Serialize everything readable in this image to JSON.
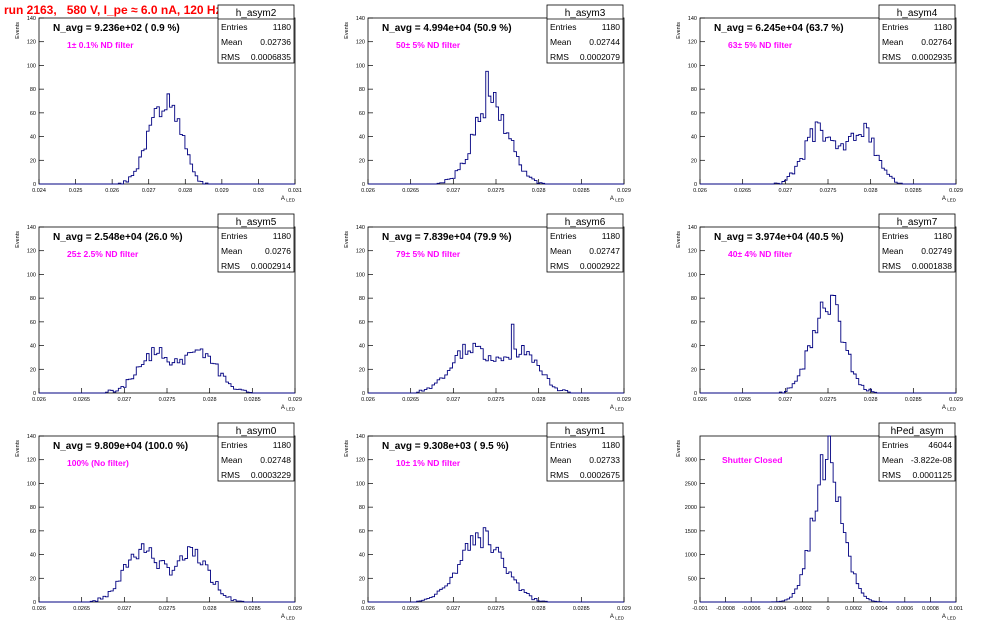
{
  "page": {
    "title": "run 2163,   580 V, I_pe ≈ 6.0 nA, 120 Hz"
  },
  "colors": {
    "title": "#ff0000",
    "annotation": "#ff00ff",
    "histogram": "#000080",
    "axis": "#000000"
  },
  "chart_data": [
    {
      "type": "histogram",
      "name": "h_asym2",
      "header": "N_avg = 9.236e+02 ( 0.9 %)",
      "annotation": "1± 0.1% ND filter",
      "stats": [
        [
          "Entries",
          "1180"
        ],
        [
          "Mean",
          "0.02736"
        ],
        [
          "RMS",
          "0.0006835"
        ]
      ],
      "xlabel": "A_LED",
      "ylabel": "Events",
      "xlim": [
        0.024,
        0.031
      ],
      "ylim": [
        0,
        140
      ],
      "xticks": [
        "0.024",
        "0.025",
        "0.026",
        "0.027",
        "0.028",
        "0.029",
        "0.03",
        "0.031"
      ],
      "yticks": [
        "0",
        "20",
        "40",
        "60",
        "80",
        "100",
        "120",
        "140"
      ],
      "peaks": [
        [
          0.02725,
          0.00035,
          52
        ],
        [
          0.02775,
          0.0003,
          35
        ]
      ],
      "noise_seed": 1
    },
    {
      "type": "histogram",
      "name": "h_asym3",
      "header": "N_avg = 4.994e+04 (50.9 %)",
      "annotation": "50± 5% ND filter",
      "stats": [
        [
          "Entries",
          "1180"
        ],
        [
          "Mean",
          "0.02744"
        ],
        [
          "RMS",
          "0.0002079"
        ]
      ],
      "xlabel": "A_LED",
      "ylabel": "Events",
      "xlim": [
        0.026,
        0.029
      ],
      "ylim": [
        0,
        140
      ],
      "xticks": [
        "0.026",
        "0.0265",
        "0.027",
        "0.0275",
        "0.028",
        "0.0285",
        "0.029"
      ],
      "yticks": [
        "0",
        "20",
        "40",
        "60",
        "80",
        "100",
        "120",
        "140"
      ],
      "peaks": [
        [
          0.02744,
          0.0002,
          72
        ]
      ],
      "spikes": [
        [
          0.0274,
          95
        ]
      ],
      "noise_seed": 2
    },
    {
      "type": "histogram",
      "name": "h_asym4",
      "header": "N_avg = 6.245e+04 (63.7 %)",
      "annotation": "63± 5% ND filter",
      "stats": [
        [
          "Entries",
          "1180"
        ],
        [
          "Mean",
          "0.02764"
        ],
        [
          "RMS",
          "0.0002935"
        ]
      ],
      "xlabel": "A_LED",
      "ylabel": "Events",
      "xlim": [
        0.026,
        0.029
      ],
      "ylim": [
        0,
        140
      ],
      "xticks": [
        "0.026",
        "0.0265",
        "0.027",
        "0.0275",
        "0.028",
        "0.0285",
        "0.029"
      ],
      "yticks": [
        "0",
        "20",
        "40",
        "60",
        "80",
        "100",
        "120",
        "140"
      ],
      "peaks": [
        [
          0.0274,
          0.00018,
          45
        ],
        [
          0.0279,
          0.00016,
          45
        ]
      ],
      "noise_seed": 3
    },
    {
      "type": "histogram",
      "name": "h_asym5",
      "header": "N_avg = 2.548e+04 (26.0 %)",
      "annotation": "25± 2.5% ND filter",
      "stats": [
        [
          "Entries",
          "1180"
        ],
        [
          "Mean",
          "0.0276"
        ],
        [
          "RMS",
          "0.0002914"
        ]
      ],
      "xlabel": "A_LED",
      "ylabel": "Events",
      "xlim": [
        0.026,
        0.029
      ],
      "ylim": [
        0,
        140
      ],
      "xticks": [
        "0.026",
        "0.0265",
        "0.027",
        "0.0275",
        "0.028",
        "0.0285",
        "0.029"
      ],
      "yticks": [
        "0",
        "20",
        "40",
        "60",
        "80",
        "100",
        "120",
        "140"
      ],
      "peaks": [
        [
          0.02735,
          0.0002,
          33
        ],
        [
          0.0279,
          0.0002,
          33
        ]
      ],
      "noise_seed": 4
    },
    {
      "type": "histogram",
      "name": "h_asym6",
      "header": "N_avg = 7.839e+04 (79.9 %)",
      "annotation": "79± 5% ND filter",
      "stats": [
        [
          "Entries",
          "1180"
        ],
        [
          "Mean",
          "0.02747"
        ],
        [
          "RMS",
          "0.0002922"
        ]
      ],
      "xlabel": "A_LED",
      "ylabel": "Events",
      "xlim": [
        0.026,
        0.029
      ],
      "ylim": [
        0,
        140
      ],
      "xticks": [
        "0.026",
        "0.0265",
        "0.027",
        "0.0275",
        "0.028",
        "0.0285",
        "0.029"
      ],
      "yticks": [
        "0",
        "20",
        "40",
        "60",
        "80",
        "100",
        "120",
        "140"
      ],
      "peaks": [
        [
          0.0272,
          0.00022,
          38
        ],
        [
          0.0278,
          0.0002,
          36
        ]
      ],
      "spikes": [
        [
          0.0277,
          58
        ]
      ],
      "noise_seed": 5
    },
    {
      "type": "histogram",
      "name": "h_asym7",
      "header": "N_avg = 3.974e+04 (40.5 %)",
      "annotation": "40± 4% ND filter",
      "stats": [
        [
          "Entries",
          "1180"
        ],
        [
          "Mean",
          "0.02749"
        ],
        [
          "RMS",
          "0.0001838"
        ]
      ],
      "xlabel": "A_LED",
      "ylabel": "Events",
      "xlim": [
        0.026,
        0.029
      ],
      "ylim": [
        0,
        140
      ],
      "xticks": [
        "0.026",
        "0.0265",
        "0.027",
        "0.0275",
        "0.028",
        "0.0285",
        "0.029"
      ],
      "yticks": [
        "0",
        "20",
        "40",
        "60",
        "80",
        "100",
        "120",
        "140"
      ],
      "peaks": [
        [
          0.02749,
          0.00018,
          80
        ]
      ],
      "noise_seed": 6
    },
    {
      "type": "histogram",
      "name": "h_asym0",
      "header": "N_avg = 9.809e+04 (100.0 %)",
      "annotation": "100% (No filter)",
      "stats": [
        [
          "Entries",
          "1180"
        ],
        [
          "Mean",
          "0.02748"
        ],
        [
          "RMS",
          "0.0003229"
        ]
      ],
      "xlabel": "A_LED",
      "ylabel": "Events",
      "xlim": [
        0.026,
        0.029
      ],
      "ylim": [
        0,
        140
      ],
      "xticks": [
        "0.026",
        "0.0265",
        "0.027",
        "0.0275",
        "0.028",
        "0.0285",
        "0.029"
      ],
      "yticks": [
        "0",
        "20",
        "40",
        "60",
        "80",
        "100",
        "120",
        "140"
      ],
      "peaks": [
        [
          0.0272,
          0.0002,
          45
        ],
        [
          0.0278,
          0.0002,
          40
        ]
      ],
      "noise_seed": 7
    },
    {
      "type": "histogram",
      "name": "h_asym1",
      "header": "N_avg = 9.308e+03 ( 9.5 %)",
      "annotation": "10± 1% ND filter",
      "stats": [
        [
          "Entries",
          "1180"
        ],
        [
          "Mean",
          "0.02733"
        ],
        [
          "RMS",
          "0.0002675"
        ]
      ],
      "xlabel": "A_LED",
      "ylabel": "Events",
      "xlim": [
        0.026,
        0.029
      ],
      "ylim": [
        0,
        140
      ],
      "xticks": [
        "0.026",
        "0.0265",
        "0.027",
        "0.0275",
        "0.028",
        "0.0285",
        "0.029"
      ],
      "yticks": [
        "0",
        "20",
        "40",
        "60",
        "80",
        "100",
        "120",
        "140"
      ],
      "peaks": [
        [
          0.02733,
          0.00025,
          55
        ]
      ],
      "noise_seed": 8
    },
    {
      "type": "histogram",
      "name": "hPed_asym",
      "header": "",
      "annotation": "Shutter Closed",
      "stats": [
        [
          "Entries",
          "46044"
        ],
        [
          "Mean",
          "-3.822e-08"
        ],
        [
          "RMS",
          "0.0001125"
        ]
      ],
      "xlabel": "A_LED",
      "ylabel": "Events",
      "xlim": [
        -0.001,
        0.001
      ],
      "ylim": [
        0,
        3500
      ],
      "xticks": [
        "-0.001",
        "-0.0008",
        "-0.0006",
        "-0.0004",
        "-0.0002",
        "0",
        "0.0002",
        "0.0004",
        "0.0006",
        "0.0008",
        "0.001"
      ],
      "yticks": [
        "0",
        "500",
        "1000",
        "1500",
        "2000",
        "2500",
        "3000"
      ],
      "peaks": [
        [
          0.0,
          0.0001125,
          3100
        ]
      ],
      "noise_seed": 9
    }
  ]
}
